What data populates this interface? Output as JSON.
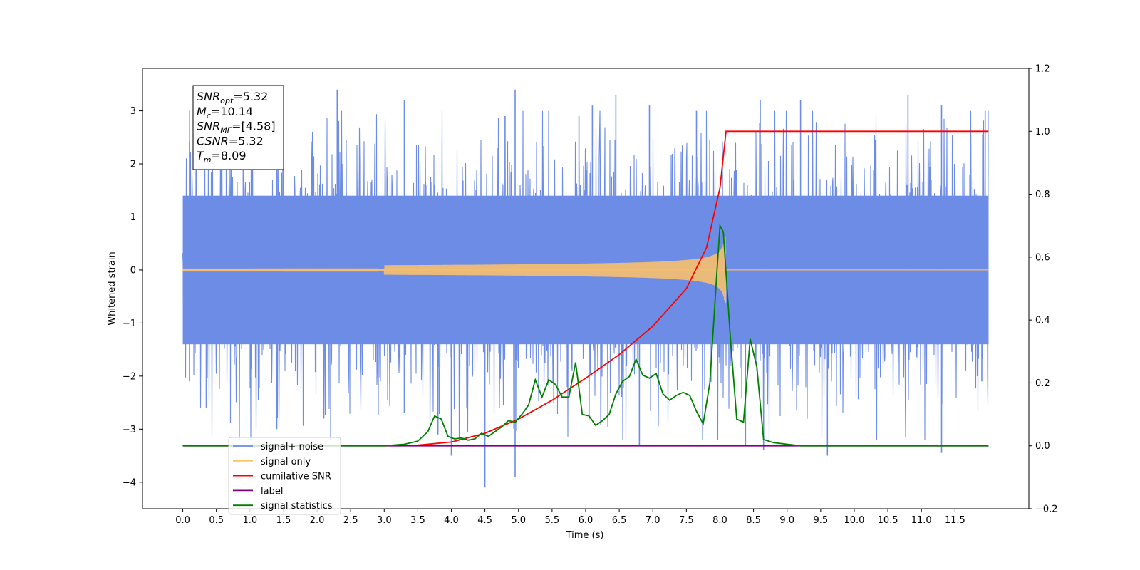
{
  "chart_data": {
    "type": "line",
    "title": "",
    "xlabel": "Time (s)",
    "ylabel_left": "Whitened strain",
    "ylabel_right": "",
    "xlim": [
      -0.6,
      12.6
    ],
    "ylim_left": [
      -4.5,
      3.8
    ],
    "ylim_right": [
      -0.2,
      1.2
    ],
    "grid": false,
    "x_ticks": [
      0.0,
      0.5,
      1.0,
      1.5,
      2.0,
      2.5,
      3.0,
      3.5,
      4.0,
      4.5,
      5.0,
      5.5,
      6.0,
      6.5,
      7.0,
      7.5,
      8.0,
      8.5,
      9.0,
      9.5,
      10.0,
      10.5,
      11.0,
      11.5
    ],
    "x_tick_labels": [
      "0.0",
      "0.5",
      "1.0",
      "1.5",
      "2.0",
      "2.5",
      "3.0",
      "3.5",
      "4.0",
      "4.5",
      "5.0",
      "5.5",
      "6.0",
      "6.5",
      "7.0",
      "7.5",
      "8.0",
      "8.5",
      "9.0",
      "9.5",
      "10.0",
      "10.5",
      "11.0",
      "11.5"
    ],
    "y_left_ticks": [
      -4,
      -3,
      -2,
      -1,
      0,
      1,
      2,
      3
    ],
    "y_left_tick_labels": [
      "−4",
      "−3",
      "−2",
      "−1",
      "0",
      "1",
      "2",
      "3"
    ],
    "y_right_ticks": [
      -0.2,
      0.0,
      0.2,
      0.4,
      0.6,
      0.8,
      1.0,
      1.2
    ],
    "y_right_tick_labels": [
      "−0.2",
      "0.0",
      "0.2",
      "0.4",
      "0.6",
      "0.8",
      "1.0",
      "1.2"
    ],
    "annotation": {
      "lines": [
        {
          "base": "SNR",
          "sub": "opt",
          "value": "=5.32"
        },
        {
          "base": "M",
          "sub": "c",
          "value": "=10.14"
        },
        {
          "base": "SNR",
          "sub": "MF",
          "value": "=[4.58]"
        },
        {
          "base": "CSNR",
          "sub": "",
          "value": "=5.32"
        },
        {
          "base": "T",
          "sub": "m",
          "value": "=8.09"
        }
      ]
    },
    "legend": {
      "placement": "lower-left",
      "entries": [
        {
          "label": "signal+ noise",
          "color": "#6d8ce6"
        },
        {
          "label": "signal only",
          "color": "#ffc266"
        },
        {
          "label": "cumilative SNR",
          "color": "#ff0000"
        },
        {
          "label": "label",
          "color": "#800080"
        },
        {
          "label": "signal statistics",
          "color": "#008000"
        }
      ]
    },
    "series": [
      {
        "name": "signal+ noise",
        "axis": "left",
        "color": "#6d8ce6",
        "x_range": [
          0.0,
          12.0
        ],
        "band_min": [
          -1.4,
          -1.4
        ],
        "band_max": [
          1.4,
          1.4
        ],
        "description_peaks": [
          [
            0.1,
            2.4
          ],
          [
            0.9,
            2.7
          ],
          [
            1.4,
            2.6
          ],
          [
            2.3,
            3.4
          ],
          [
            3.3,
            3.2
          ],
          [
            4.8,
            2.9
          ],
          [
            4.95,
            3.4
          ],
          [
            5.9,
            2.9
          ],
          [
            6.1,
            3.1
          ],
          [
            6.45,
            3.3
          ],
          [
            6.95,
            3.1
          ],
          [
            7.65,
            3.0
          ],
          [
            8.6,
            3.2
          ],
          [
            9.2,
            3.2
          ],
          [
            10.8,
            3.3
          ],
          [
            11.3,
            3.1
          ],
          [
            11.95,
            3.0
          ]
        ],
        "description_troughs": [
          [
            0.1,
            -2.1
          ],
          [
            0.35,
            -2.6
          ],
          [
            1.4,
            -3.0
          ],
          [
            2.1,
            -2.8
          ],
          [
            3.3,
            -2.7
          ],
          [
            3.8,
            -3.1
          ],
          [
            4.0,
            -3.5
          ],
          [
            4.5,
            -4.1
          ],
          [
            4.95,
            -3.9
          ],
          [
            6.8,
            -3.3
          ],
          [
            8.38,
            -3.3
          ],
          [
            8.65,
            -3.4
          ],
          [
            9.6,
            -3.5
          ],
          [
            11.3,
            -3.45
          ],
          [
            11.9,
            -2.1
          ]
        ]
      },
      {
        "name": "signal only",
        "axis": "left",
        "color": "#ffc266",
        "x_range": [
          0.0,
          12.0
        ],
        "chirp_end": 8.09,
        "amplitude_at_end": 0.62
      },
      {
        "name": "cumilative SNR",
        "axis": "right",
        "color": "#ff0000",
        "x": [
          3.0,
          3.5,
          4.0,
          4.5,
          5.0,
          5.5,
          6.0,
          6.5,
          7.0,
          7.5,
          7.8,
          8.0,
          8.09,
          8.1,
          12.0
        ],
        "y": [
          0.0,
          0.002,
          0.012,
          0.04,
          0.085,
          0.145,
          0.215,
          0.29,
          0.38,
          0.5,
          0.63,
          0.82,
          1.0,
          1.0,
          1.0
        ]
      },
      {
        "name": "label",
        "axis": "right",
        "color": "#800080",
        "x": [
          0.0,
          12.0
        ],
        "y": [
          0.0,
          0.0
        ]
      },
      {
        "name": "signal statistics",
        "axis": "right",
        "color": "#008000",
        "x": [
          0.0,
          3.0,
          3.3,
          3.5,
          3.65,
          3.75,
          3.85,
          3.95,
          4.05,
          4.15,
          4.25,
          4.35,
          4.45,
          4.55,
          4.65,
          4.75,
          4.85,
          4.95,
          5.05,
          5.15,
          5.25,
          5.35,
          5.45,
          5.55,
          5.65,
          5.75,
          5.85,
          5.95,
          6.05,
          6.15,
          6.25,
          6.35,
          6.45,
          6.55,
          6.65,
          6.75,
          6.85,
          6.95,
          7.05,
          7.15,
          7.25,
          7.35,
          7.45,
          7.55,
          7.65,
          7.75,
          7.85,
          7.95,
          8.0,
          8.05,
          8.15,
          8.25,
          8.35,
          8.45,
          8.55,
          8.65,
          8.8,
          9.0,
          9.2,
          12.0
        ],
        "y": [
          0.0,
          0.0,
          0.005,
          0.015,
          0.045,
          0.095,
          0.085,
          0.03,
          0.022,
          0.025,
          0.018,
          0.022,
          0.04,
          0.03,
          0.045,
          0.06,
          0.08,
          0.075,
          0.1,
          0.13,
          0.21,
          0.155,
          0.21,
          0.195,
          0.155,
          0.155,
          0.265,
          0.1,
          0.095,
          0.065,
          0.08,
          0.1,
          0.165,
          0.205,
          0.22,
          0.275,
          0.225,
          0.215,
          0.23,
          0.165,
          0.145,
          0.16,
          0.17,
          0.16,
          0.11,
          0.07,
          0.2,
          0.54,
          0.7,
          0.68,
          0.36,
          0.085,
          0.075,
          0.34,
          0.25,
          0.02,
          0.01,
          0.005,
          0.0,
          0.0
        ]
      }
    ]
  }
}
